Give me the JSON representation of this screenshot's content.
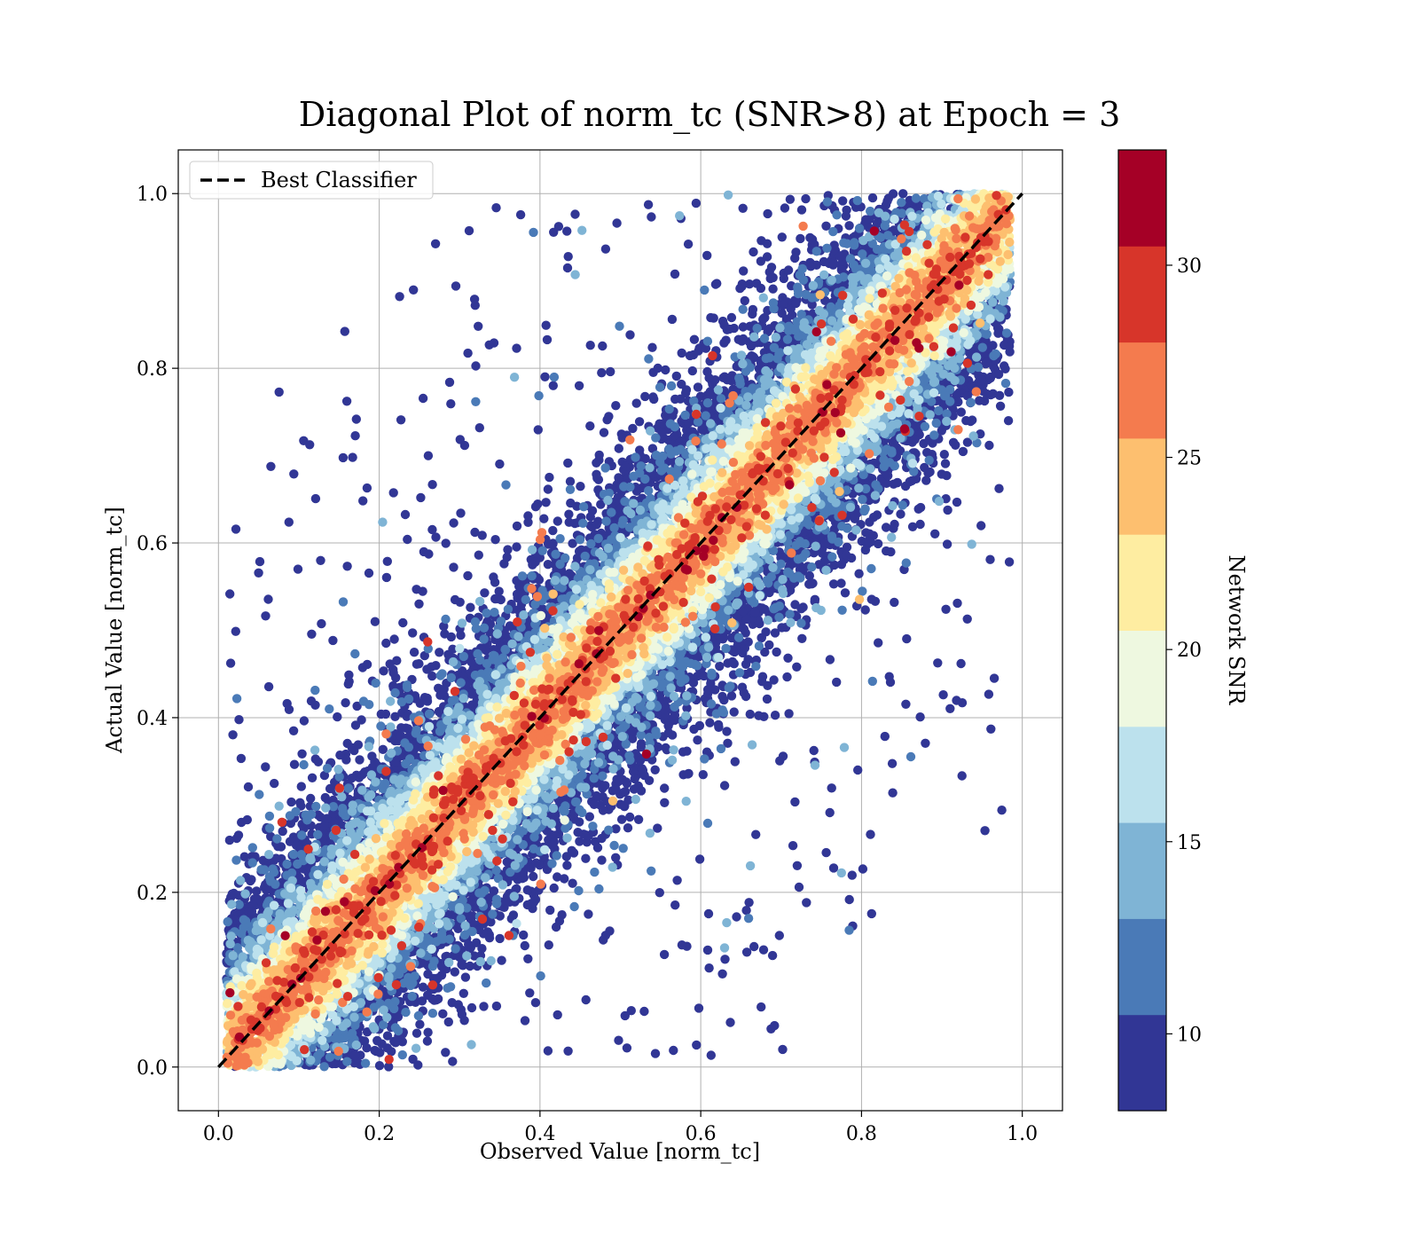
{
  "chart_data": {
    "type": "scatter",
    "title": "Diagonal Plot of norm_tc (SNR>8) at Epoch = 3",
    "xlabel": "Observed Value [norm_tc]",
    "ylabel": "Actual Value [norm_tc]",
    "xlim": [
      -0.05,
      1.05
    ],
    "ylim": [
      -0.05,
      1.05
    ],
    "x_ticks": [
      "0.0",
      "0.2",
      "0.4",
      "0.6",
      "0.8",
      "1.0"
    ],
    "y_ticks": [
      "0.0",
      "0.2",
      "0.4",
      "0.6",
      "0.8",
      "1.0"
    ],
    "x_tick_values": [
      0,
      0.2,
      0.4,
      0.6,
      0.8,
      1.0
    ],
    "y_tick_values": [
      0,
      0.2,
      0.4,
      0.6,
      0.8,
      1.0
    ],
    "grid": true,
    "legend": {
      "placement": "upper-left",
      "entries": [
        {
          "label": "Best Classifier",
          "style": "dashed",
          "color": "#000000"
        }
      ]
    },
    "reference_line": {
      "name": "Best Classifier",
      "x": [
        0.0,
        1.0
      ],
      "y": [
        0.0,
        1.0
      ]
    },
    "color_metric": "Network SNR",
    "colorbar": {
      "label": "Network SNR",
      "range": [
        8,
        33
      ],
      "ticks": [
        "10",
        "15",
        "20",
        "25",
        "30"
      ],
      "tick_values": [
        10,
        15,
        20,
        25,
        30
      ],
      "bins": [
        {
          "from": 8.0,
          "to": 10.5,
          "color": "#313695"
        },
        {
          "from": 10.5,
          "to": 13.0,
          "color": "#4a7ab7"
        },
        {
          "from": 13.0,
          "to": 15.5,
          "color": "#7fb4d5"
        },
        {
          "from": 15.5,
          "to": 18.0,
          "color": "#bce1ed"
        },
        {
          "from": 18.0,
          "to": 20.5,
          "color": "#eef8e0"
        },
        {
          "from": 20.5,
          "to": 23.0,
          "color": "#feeda1"
        },
        {
          "from": 23.0,
          "to": 25.5,
          "color": "#fdbf6f"
        },
        {
          "from": 25.5,
          "to": 28.0,
          "color": "#f47b4e"
        },
        {
          "from": 28.0,
          "to": 30.5,
          "color": "#d7352a"
        },
        {
          "from": 30.5,
          "to": 33.0,
          "color": "#a50026"
        }
      ]
    },
    "distribution": {
      "approx_points": 22000,
      "core_halfwidth": 0.08,
      "outlier_fraction": 0.04
    }
  }
}
